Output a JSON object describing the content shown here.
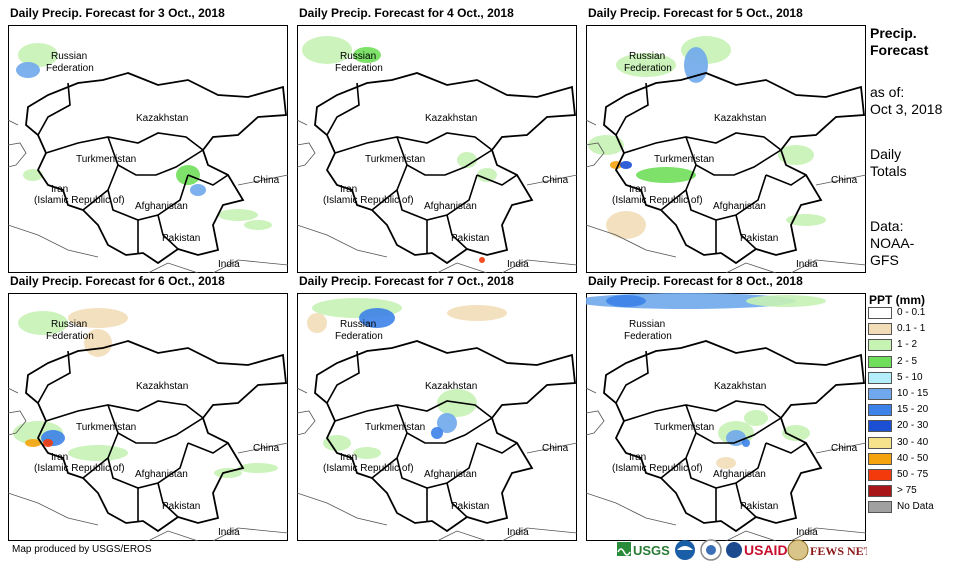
{
  "panels": [
    {
      "title": "Daily Precip. Forecast for 3 Oct., 2018"
    },
    {
      "title": "Daily Precip. Forecast for 4 Oct., 2018"
    },
    {
      "title": "Daily Precip. Forecast for 5 Oct., 2018"
    },
    {
      "title": "Daily Precip. Forecast for 6 Oct., 2018"
    },
    {
      "title": "Daily Precip. Forecast for 7 Oct., 2018"
    },
    {
      "title": "Daily Precip. Forecast for 8 Oct., 2018"
    }
  ],
  "map_labels": {
    "russia_1": "Russian",
    "russia_2": "Federation",
    "kazakhstan": "Kazakhstan",
    "turkmenistan": "Turkmenistan",
    "iran_1": "Iran",
    "iran_2": "(Islamic Republic of)",
    "afghanistan": "Afghanistan",
    "pakistan": "Pakistan",
    "china": "China",
    "india": "India"
  },
  "side": {
    "heading": "Precip. Forecast",
    "asof": "as of:",
    "date": "Oct 3, 2018",
    "totals": "Daily Totals",
    "data": "Data: NOAA-GFS"
  },
  "legend": {
    "title": "PPT (mm)",
    "items": [
      {
        "label": "0 - 0.1",
        "color": "#ffffff"
      },
      {
        "label": "0.1 - 1",
        "color": "#f2ddb8"
      },
      {
        "label": "1 - 2",
        "color": "#c6f2b4"
      },
      {
        "label": "2 - 5",
        "color": "#6fde5a"
      },
      {
        "label": "5 - 10",
        "color": "#b4eefa"
      },
      {
        "label": "10 - 15",
        "color": "#6fa8ec"
      },
      {
        "label": "15 - 20",
        "color": "#3c82e8"
      },
      {
        "label": "20 - 30",
        "color": "#1b4fd4"
      },
      {
        "label": "30 - 40",
        "color": "#f6e28c"
      },
      {
        "label": "40 - 50",
        "color": "#f5a30e"
      },
      {
        "label": "50 - 75",
        "color": "#f23a0c"
      },
      {
        "label": "> 75",
        "color": "#a8161a"
      },
      {
        "label": "No Data",
        "color": "#a0a0a0"
      }
    ]
  },
  "credit": "Map produced by USGS/EROS",
  "logos": [
    "USGS",
    "USAID",
    "FEWS NET"
  ]
}
